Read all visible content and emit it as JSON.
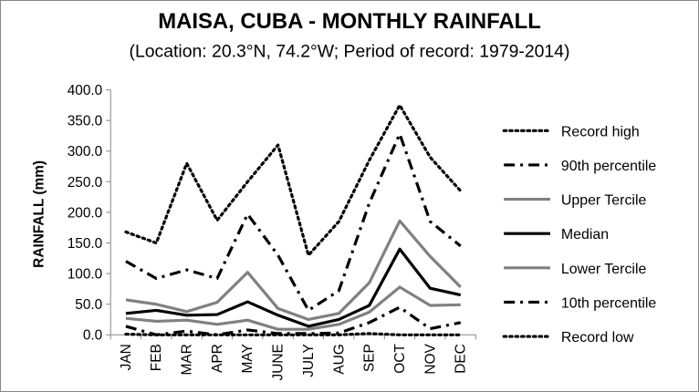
{
  "chart_data": {
    "type": "line",
    "title": "MAISA, CUBA - MONTHLY RAINFALL",
    "subtitle": "(Location: 20.3°N, 74.2°W; Period of record: 1979-2014)",
    "ylabel": "RAINFALL (mm)",
    "xlabel": "",
    "ylim": [
      0,
      400
    ],
    "yticks": [
      "0.0",
      "50.0",
      "100.0",
      "150.0",
      "200.0",
      "250.0",
      "300.0",
      "350.0",
      "400.0"
    ],
    "categories": [
      "JAN",
      "FEB",
      "MAR",
      "APR",
      "MAY",
      "JUNE",
      "JULY",
      "AUG",
      "SEP",
      "OCT",
      "NOV",
      "DEC"
    ],
    "legend_position": "right",
    "grid": false,
    "series": [
      {
        "name": "Record high",
        "color": "#000000",
        "style": "dotted",
        "values": [
          168,
          150,
          280,
          187,
          250,
          310,
          130,
          185,
          285,
          375,
          290,
          235
        ]
      },
      {
        "name": "90th percentile",
        "color": "#000000",
        "style": "dashdot",
        "values": [
          120,
          92,
          106,
          92,
          197,
          130,
          40,
          72,
          215,
          328,
          185,
          145
        ]
      },
      {
        "name": "Upper Tercile",
        "color": "#808080",
        "style": "solid",
        "values": [
          57,
          50,
          38,
          53,
          102,
          43,
          25,
          35,
          85,
          186,
          128,
          78
        ]
      },
      {
        "name": "Median",
        "color": "#000000",
        "style": "solid",
        "values": [
          35,
          40,
          32,
          33,
          54,
          32,
          14,
          25,
          48,
          140,
          76,
          65
        ]
      },
      {
        "name": "Lower Tercile",
        "color": "#808080",
        "style": "solid",
        "values": [
          27,
          22,
          24,
          17,
          24,
          9,
          9,
          17,
          37,
          78,
          48,
          49
        ]
      },
      {
        "name": "10th percentile",
        "color": "#000000",
        "style": "dashdot",
        "values": [
          14,
          0,
          6,
          0,
          8,
          2,
          2,
          3,
          20,
          45,
          10,
          20
        ]
      },
      {
        "name": "Record low",
        "color": "#000000",
        "style": "dotted",
        "values": [
          1,
          0,
          0,
          0,
          0,
          0,
          0,
          0,
          2,
          0,
          0,
          0
        ]
      }
    ]
  }
}
